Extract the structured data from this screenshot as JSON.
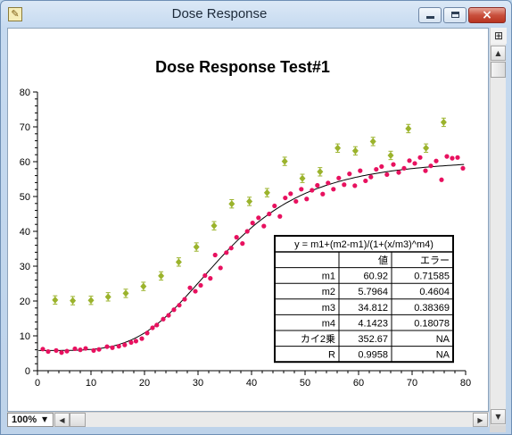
{
  "window": {
    "title": "Dose Response",
    "icon": "notebook-icon",
    "zoom": "100%"
  },
  "chart_data": {
    "type": "scatter",
    "title": "Dose Response Test#1",
    "xlabel": "",
    "ylabel": "",
    "xlim": [
      0,
      80
    ],
    "ylim": [
      0,
      80
    ],
    "x_ticks": [
      "0",
      "10",
      "20",
      "30",
      "40",
      "50",
      "60",
      "70",
      "80"
    ],
    "y_ticks": [
      "0",
      "10",
      "20",
      "30",
      "40",
      "50",
      "60",
      "70",
      "80"
    ],
    "grid": false,
    "series": [
      {
        "kind": "points-with-error-bars",
        "color": "#9bb32c",
        "x": [
          3.3,
          6.6,
          10,
          13.2,
          16.5,
          19.8,
          23.1,
          26.4,
          29.7,
          33,
          36.3,
          39.6,
          42.9,
          46.2,
          49.5,
          52.8,
          56.1,
          59.4,
          62.7,
          66,
          69.3,
          72.6,
          75.9
        ],
        "y": [
          20.3,
          20.1,
          20.2,
          21.2,
          22.2,
          24.2,
          27.2,
          31.2,
          35.5,
          41.6,
          47.9,
          48.6,
          51.1,
          60.1,
          55.2,
          57.1,
          63.9,
          63.1,
          65.8,
          61.8,
          69.5,
          63.9,
          71.3
        ],
        "error": [
          1.2,
          1.2,
          1.2,
          1.2,
          1.2,
          1.2,
          1.2,
          1.2,
          1.2,
          1.2,
          1.2,
          1.2,
          1.2,
          1.2,
          1.2,
          1.2,
          1.2,
          1.2,
          1.2,
          1.2,
          1.2,
          1.2,
          1.2
        ]
      },
      {
        "kind": "points",
        "color": "#e8115f",
        "x": [
          1,
          2,
          3.5,
          4.5,
          5.5,
          7,
          8,
          9,
          10.5,
          11.5,
          13,
          14,
          15.2,
          16.3,
          17.5,
          18.4,
          19.5,
          20.5,
          21.5,
          22.3,
          23.5,
          24.5,
          25.5,
          26.5,
          27.5,
          28.5,
          29.5,
          30.5,
          31.3,
          32.3,
          33.2,
          34.2,
          35.3,
          36.2,
          37.2,
          38.3,
          39.2,
          40.2,
          41.3,
          42.3,
          43.3,
          44.3,
          45.3,
          46.3,
          47.3,
          48.3,
          49.3,
          50.3,
          51.3,
          52.3,
          53.3,
          54.3,
          55.3,
          56.3,
          57.3,
          58.3,
          59.3,
          60.3,
          61.3,
          62.3,
          63.3,
          64.3,
          65.3,
          66.5,
          67.5,
          68.5,
          69.5,
          70.5,
          71.5,
          72.5,
          73.5,
          74.5,
          75.5,
          76.5,
          77.5,
          78.5,
          79.5
        ],
        "y": [
          6.2,
          5.5,
          5.8,
          5.2,
          5.6,
          6.3,
          6.0,
          6.4,
          5.8,
          6.1,
          6.9,
          6.6,
          7.0,
          7.4,
          8.1,
          8.5,
          9.2,
          10.8,
          12.3,
          13.1,
          14.8,
          15.9,
          17.5,
          18.8,
          20.5,
          23.8,
          22.8,
          24.5,
          27.3,
          26.5,
          33.2,
          29.5,
          33.9,
          35.2,
          38.3,
          36.5,
          40.0,
          42.4,
          43.9,
          41.5,
          45.0,
          47.3,
          44.3,
          49.6,
          50.8,
          48.6,
          52.1,
          49.3,
          51.8,
          53.2,
          50.7,
          53.9,
          52.1,
          55.3,
          53.4,
          56.5,
          53.1,
          57.4,
          54.5,
          55.6,
          57.8,
          58.6,
          56.3,
          59.2,
          56.9,
          58.1,
          60.3,
          59.5,
          61.2,
          57.4,
          58.8,
          60.2,
          54.8,
          61.5,
          61.0,
          61.2,
          58.1
        ]
      },
      {
        "kind": "fit-curve",
        "color": "#000000",
        "model": "y = m1+(m2-m1)/(1+(x/m3)^m4)",
        "params": {
          "m1": 60.92,
          "m2": 5.7964,
          "m3": 34.812,
          "m4": 4.1423
        }
      }
    ],
    "fit_table": {
      "equation": "y = m1+(m2-m1)/(1+(x/m3)^m4)",
      "header": [
        "",
        "値",
        "エラー"
      ],
      "rows": [
        [
          "m1",
          "60.92",
          "0.71585"
        ],
        [
          "m2",
          "5.7964",
          "0.4604"
        ],
        [
          "m3",
          "34.812",
          "0.38369"
        ],
        [
          "m4",
          "4.1423",
          "0.18078"
        ],
        [
          "カイ2乗",
          "352.67",
          "NA"
        ],
        [
          "R",
          "0.9958",
          "NA"
        ]
      ]
    }
  }
}
